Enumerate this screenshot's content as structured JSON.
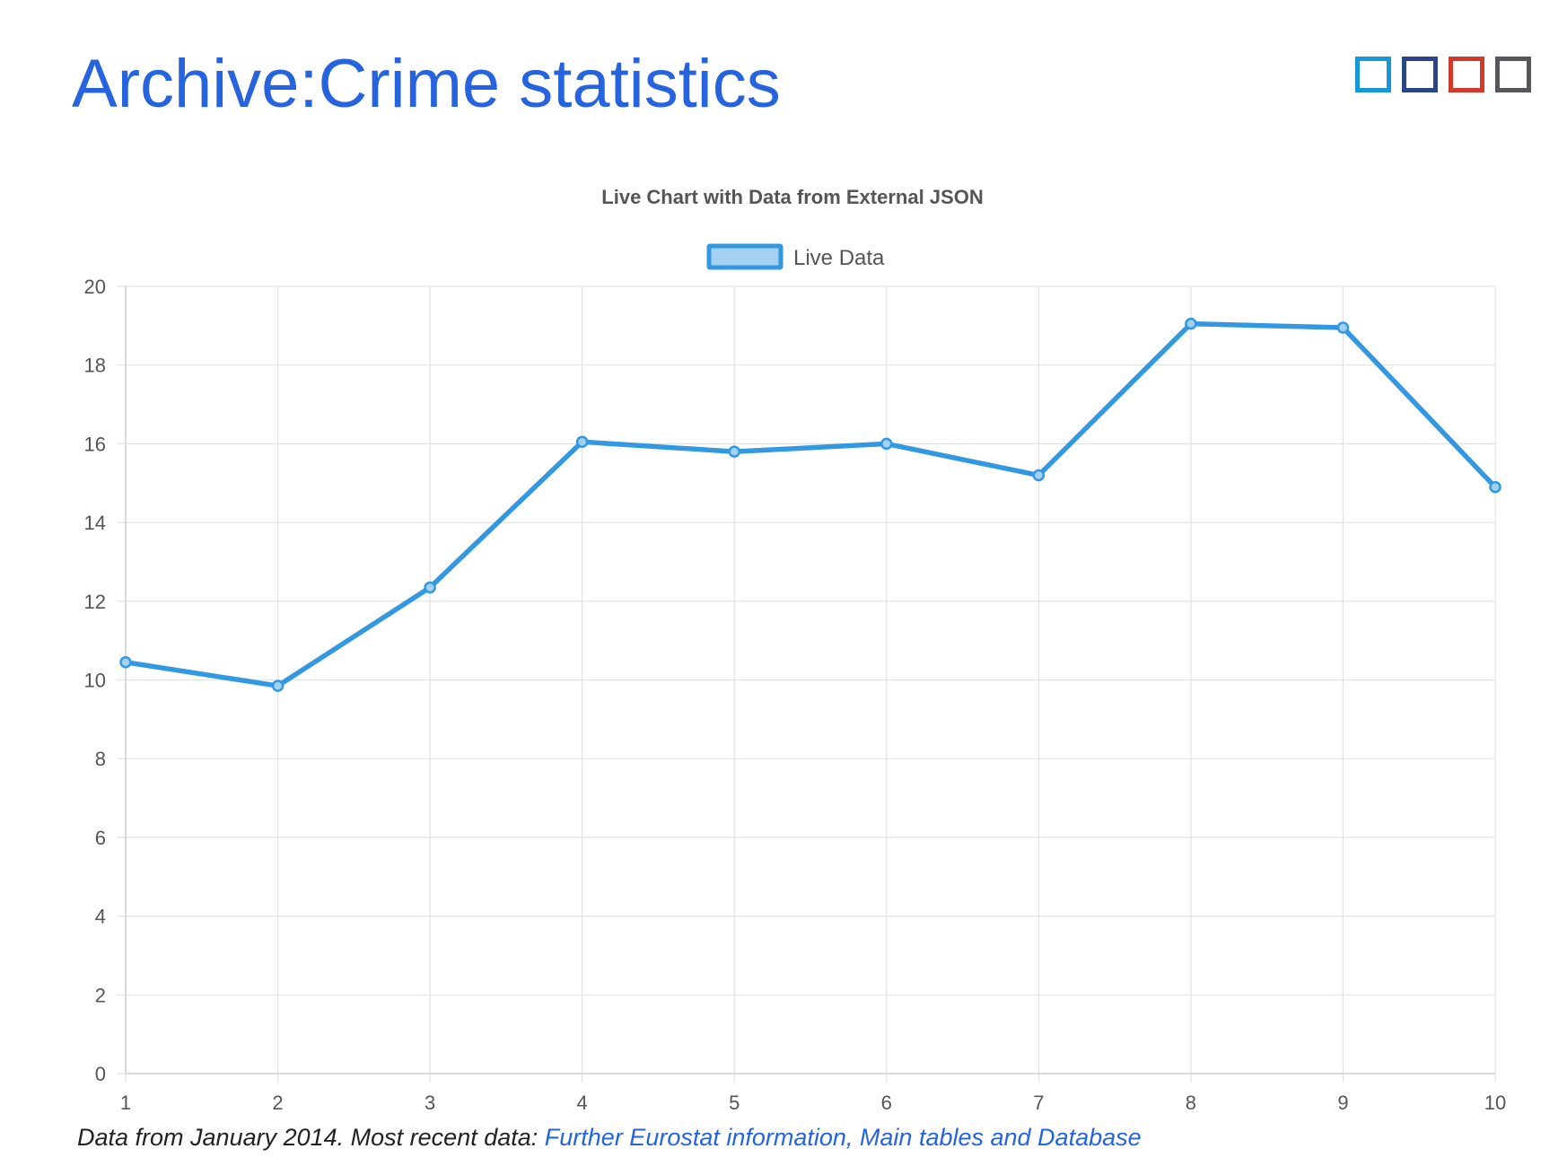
{
  "page": {
    "title": "Archive:Crime statistics",
    "color_squares": [
      "#1597d8",
      "#2b4688",
      "#d23a2b",
      "#55575c"
    ]
  },
  "footnote": {
    "prefix": "Data from January 2014. Most recent data:",
    "link": "Further Eurostat information, Main tables and Database"
  },
  "colors": {
    "title": "#2563df",
    "line": "#3398e2",
    "legend_fill": "#a3d0f3",
    "grid": "#e2e2e2",
    "text": "#555555"
  },
  "chart_data": {
    "type": "line",
    "title": "Live Chart with Data from External JSON",
    "xlabel": "",
    "ylabel": "",
    "x": [
      1,
      2,
      3,
      4,
      5,
      6,
      7,
      8,
      9,
      10
    ],
    "series": [
      {
        "name": "Live Data",
        "values": [
          10.45,
          9.85,
          12.35,
          16.05,
          15.8,
          16.0,
          15.2,
          19.05,
          18.95,
          14.9
        ]
      }
    ],
    "xlim": [
      1,
      10
    ],
    "ylim": [
      0,
      20
    ],
    "yticks": [
      0,
      2,
      4,
      6,
      8,
      10,
      12,
      14,
      16,
      18,
      20
    ],
    "xticks": [
      1,
      2,
      3,
      4,
      5,
      6,
      7,
      8,
      9,
      10
    ],
    "grid": true,
    "legend_position": "top-center"
  }
}
